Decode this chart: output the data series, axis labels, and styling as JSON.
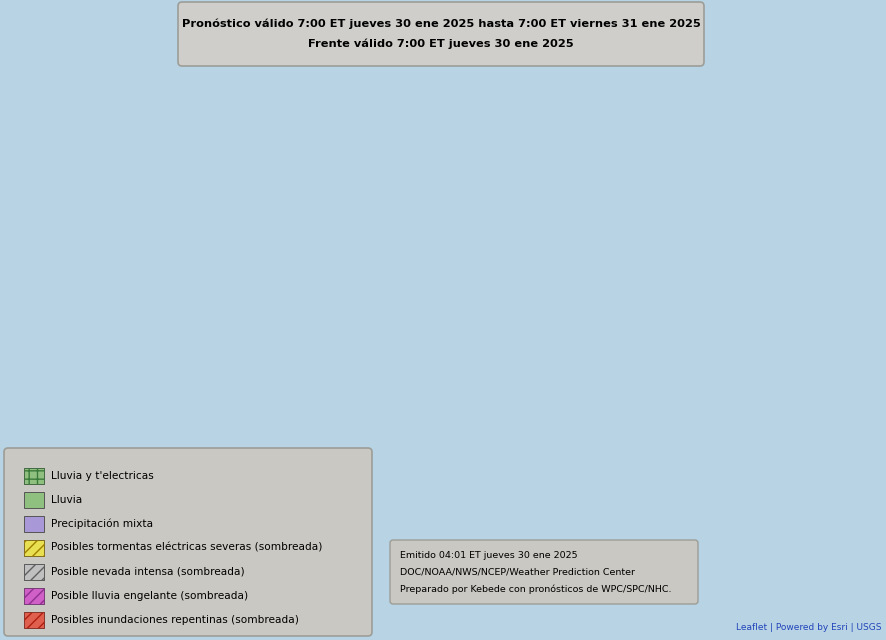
{
  "title_line1": "Pronóstico válido 7:00 ET jueves 30 ene 2025 hasta 7:00 ET viernes 31 ene 2025",
  "title_line2": "Frente válido 7:00 ET jueves 30 ene 2025",
  "title_box_color": "#d2cec8",
  "title_box_edge": "#999992",
  "map_land_color": "#e8e0d0",
  "map_ocean_color": "#b8d8e8",
  "map_lake_color": "#b8d8e8",
  "map_border_color": "#555555",
  "map_state_color": "#888888",
  "background_color": "#b8d4e4",
  "legend_items": [
    {
      "label": "Lluvia y t'electricas",
      "color": "#90c080",
      "hatch": "++",
      "hatch_color": "#3a7a3a"
    },
    {
      "label": "Lluvia",
      "color": "#90c080",
      "hatch": "",
      "hatch_color": null
    },
    {
      "label": "Precipitación mixta",
      "color": "#a898d8",
      "hatch": "",
      "hatch_color": null
    },
    {
      "label": "Posibles tormentas eléctricas severas (sombreada)",
      "color": "#e8e050",
      "hatch": "///",
      "hatch_color": "#a08000"
    },
    {
      "label": "Posible nevada intensa (sombreada)",
      "color": "#c0c0c0",
      "hatch": "///",
      "hatch_color": "#606060"
    },
    {
      "label": "Posible lluvia engelante (sombreada)",
      "color": "#d060c8",
      "hatch": "///",
      "hatch_color": "#903090"
    },
    {
      "label": "Posibles inundaciones repentinas (sombreada)",
      "color": "#e06050",
      "hatch": "///",
      "hatch_color": "#b02010"
    }
  ],
  "legend_box_color": "#ccc8c0",
  "legend_box_edge": "#999992",
  "footer_line1": "Emitido 04:01 ET jueves 30 ene 2025",
  "footer_line2": "DOC/NOAA/NWS/NCEP/Weather Prediction Center",
  "footer_line3": "Preparado por Kebede con pronósticos de WPC/SPC/NHC.",
  "leaflet_text": "Leaflet | Powered by Esri | USGS",
  "fig_width": 8.87,
  "fig_height": 6.4,
  "dpi": 100,
  "extent": [
    -126,
    -66,
    22,
    50
  ]
}
